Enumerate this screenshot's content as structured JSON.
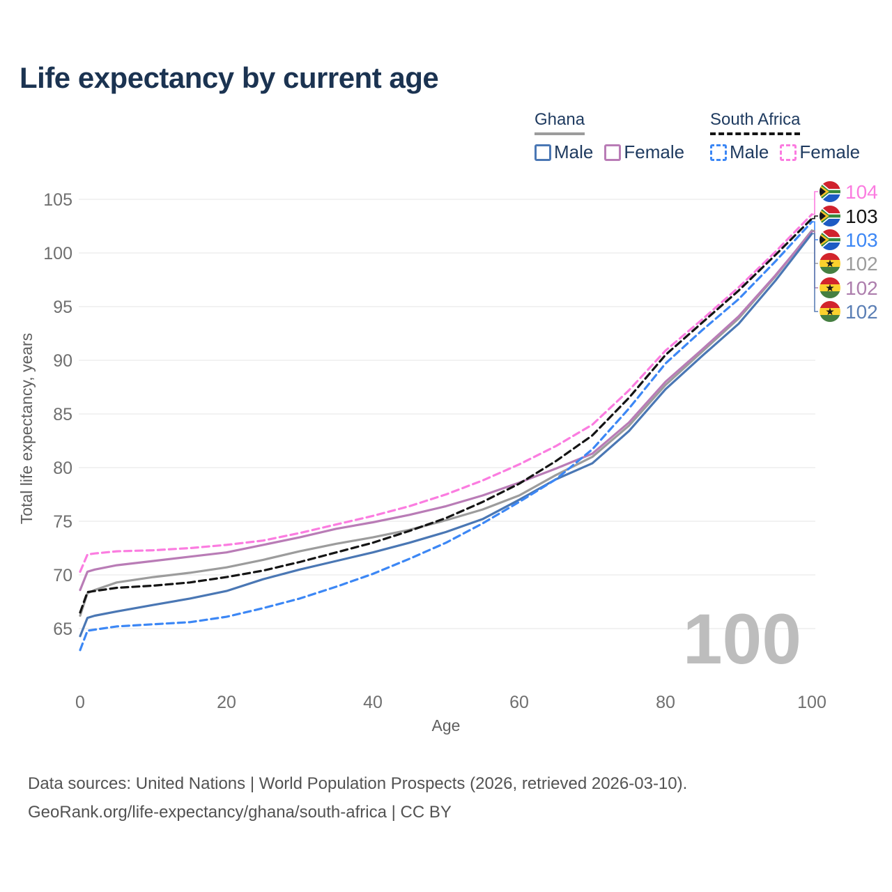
{
  "title": "Life expectancy by current age",
  "legend": {
    "groups": [
      {
        "label": "Ghana",
        "underline_style": "solid",
        "underline_color": "#9c9c9c",
        "items": [
          {
            "label": "Male",
            "color": "#4a77b4",
            "dashed": false
          },
          {
            "label": "Female",
            "color": "#b97cb6",
            "dashed": false
          }
        ]
      },
      {
        "label": "South Africa",
        "underline_style": "dashed",
        "underline_color": "#141414",
        "items": [
          {
            "label": "Male",
            "color": "#3c87f5",
            "dashed": true
          },
          {
            "label": "Female",
            "color": "#fb7ce0",
            "dashed": true
          }
        ]
      }
    ]
  },
  "chart_data": {
    "type": "line",
    "title": "Life expectancy by current age",
    "xlabel": "Age",
    "ylabel": "Total life expectancy, years",
    "xlim": [
      0,
      100
    ],
    "ylim": [
      63,
      106
    ],
    "x_ticks": [
      0,
      20,
      40,
      60,
      80,
      100
    ],
    "y_ticks": [
      65,
      70,
      75,
      80,
      85,
      90,
      95,
      100,
      105
    ],
    "grid": "horizontal",
    "legend_position": "top-right",
    "age_cursor": "100",
    "x": [
      0,
      1,
      2,
      5,
      10,
      15,
      20,
      25,
      30,
      35,
      40,
      45,
      50,
      55,
      60,
      65,
      70,
      75,
      80,
      85,
      90,
      95,
      100
    ],
    "series": [
      {
        "name": "Ghana Total",
        "country": "Ghana",
        "sex": "total",
        "color": "#9c9c9c",
        "dashed": false,
        "end_label": "102",
        "values": [
          66.2,
          68.3,
          68.6,
          69.3,
          69.8,
          70.2,
          70.7,
          71.4,
          72.2,
          72.9,
          73.5,
          74.2,
          75.1,
          76.1,
          77.4,
          79.3,
          81.0,
          83.9,
          87.7,
          90.8,
          93.9,
          97.8,
          102.1
        ]
      },
      {
        "name": "Ghana Female",
        "country": "Ghana",
        "sex": "female",
        "color": "#b97cb6",
        "dashed": false,
        "end_label": "102",
        "values": [
          68.6,
          70.3,
          70.5,
          70.9,
          71.3,
          71.7,
          72.1,
          72.8,
          73.5,
          74.3,
          74.9,
          75.6,
          76.4,
          77.4,
          78.6,
          79.9,
          81.3,
          84.2,
          88.0,
          91.0,
          94.1,
          97.9,
          102.0
        ]
      },
      {
        "name": "Ghana Male",
        "country": "Ghana",
        "sex": "male",
        "color": "#4a77b4",
        "dashed": false,
        "end_label": "102",
        "values": [
          64.3,
          66.0,
          66.2,
          66.6,
          67.2,
          67.8,
          68.5,
          69.6,
          70.5,
          71.3,
          72.1,
          73.0,
          74.0,
          75.2,
          77.0,
          78.9,
          80.4,
          83.4,
          87.3,
          90.4,
          93.4,
          97.4,
          101.8
        ]
      },
      {
        "name": "South Africa Total",
        "country": "South Africa",
        "sex": "total",
        "color": "#141414",
        "dashed": true,
        "end_label": "103",
        "values": [
          66.5,
          68.4,
          68.5,
          68.8,
          69.0,
          69.3,
          69.8,
          70.4,
          71.2,
          72.1,
          73.0,
          74.1,
          75.3,
          76.8,
          78.5,
          80.6,
          83.0,
          86.5,
          90.5,
          93.5,
          96.5,
          99.8,
          103.2
        ]
      },
      {
        "name": "South Africa Male",
        "country": "South Africa",
        "sex": "male",
        "color": "#3c87f5",
        "dashed": true,
        "end_label": "103",
        "values": [
          63.0,
          64.8,
          64.9,
          65.2,
          65.4,
          65.6,
          66.1,
          66.9,
          67.8,
          68.9,
          70.1,
          71.5,
          73.0,
          74.8,
          76.8,
          78.9,
          81.7,
          85.5,
          89.7,
          92.8,
          95.7,
          99.2,
          102.9
        ]
      },
      {
        "name": "South Africa Female",
        "country": "South Africa",
        "sex": "female",
        "color": "#fb7ce0",
        "dashed": true,
        "end_label": "104",
        "values": [
          70.3,
          71.9,
          72.0,
          72.2,
          72.3,
          72.5,
          72.8,
          73.2,
          73.9,
          74.7,
          75.5,
          76.4,
          77.5,
          78.8,
          80.3,
          82.0,
          84.0,
          87.2,
          90.9,
          93.8,
          96.8,
          100.1,
          103.6
        ]
      }
    ]
  },
  "end_labels": [
    {
      "series": "South Africa Female",
      "text": "104",
      "color": "#fb7ce0",
      "flag": "south-africa"
    },
    {
      "series": "South Africa Total",
      "text": "103",
      "color": "#141414",
      "flag": "south-africa"
    },
    {
      "series": "South Africa Male",
      "text": "103",
      "color": "#3c87f5",
      "flag": "south-africa"
    },
    {
      "series": "Ghana Total",
      "text": "102",
      "color": "#9c9c9c",
      "flag": "ghana"
    },
    {
      "series": "Ghana Female",
      "text": "102",
      "color": "#ad7ead",
      "flag": "ghana"
    },
    {
      "series": "Ghana Male",
      "text": "102",
      "color": "#5b7fb5",
      "flag": "ghana"
    }
  ],
  "footer": {
    "line1": "Data sources: United Nations | World Population Prospects (2026, retrieved 2026-03-10).",
    "line2": "GeoRank.org/life-expectancy/ghana/south-africa | CC BY"
  }
}
